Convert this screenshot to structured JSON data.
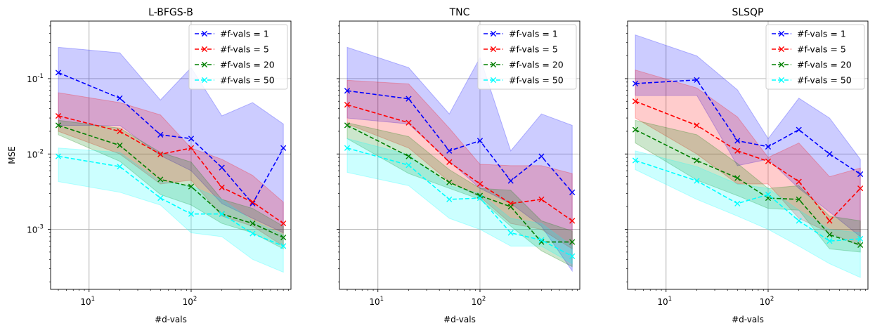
{
  "chart_data": [
    {
      "type": "line",
      "title": "L-BFGS-B",
      "xlabel": "#d-vals",
      "ylabel": "MSE",
      "xscale": "log",
      "yscale": "log",
      "xlim": [
        4.2,
        950
      ],
      "ylim": [
        0.00016,
        0.58
      ],
      "grid": true,
      "legend_position": "top-right",
      "x": [
        5,
        20,
        50,
        100,
        200,
        400,
        800
      ],
      "series": [
        {
          "name": "#f-vals = 1",
          "color": "#0000ff",
          "values": [
            0.12,
            0.055,
            0.018,
            0.016,
            0.0066,
            0.0022,
            0.012
          ],
          "lower": [
            0.024,
            0.024,
            0.0095,
            0.006,
            0.0022,
            0.0014,
            0.0009
          ],
          "upper": [
            0.26,
            0.22,
            0.052,
            0.14,
            0.032,
            0.048,
            0.025
          ]
        },
        {
          "name": "#f-vals = 5",
          "color": "#ff0000",
          "values": [
            0.032,
            0.02,
            0.0099,
            0.012,
            0.0036,
            0.0023,
            0.0012
          ],
          "lower": [
            0.02,
            0.01,
            0.004,
            0.0045,
            0.0015,
            0.0011,
            0.0006
          ],
          "upper": [
            0.065,
            0.048,
            0.033,
            0.012,
            0.0085,
            0.0052,
            0.0023
          ]
        },
        {
          "name": "#f-vals = 20",
          "color": "#008000",
          "values": [
            0.024,
            0.013,
            0.0046,
            0.0037,
            0.0016,
            0.0012,
            0.00078
          ],
          "lower": [
            0.018,
            0.008,
            0.0029,
            0.0021,
            0.0012,
            0.0009,
            0.00055
          ],
          "upper": [
            0.028,
            0.022,
            0.0105,
            0.0078,
            0.0025,
            0.0019,
            0.0011
          ]
        },
        {
          "name": "#f-vals = 50",
          "color": "#00ffff",
          "values": [
            0.0093,
            0.0068,
            0.0026,
            0.0016,
            0.0016,
            0.00088,
            0.0006
          ],
          "lower": [
            0.0043,
            0.0031,
            0.0021,
            0.0009,
            0.0008,
            0.0004,
            0.00027
          ],
          "upper": [
            0.012,
            0.0105,
            0.0043,
            0.0038,
            0.0025,
            0.0013,
            0.00085
          ]
        }
      ]
    },
    {
      "type": "line",
      "title": "TNC",
      "xlabel": "#d-vals",
      "ylabel": "",
      "xscale": "log",
      "yscale": "log",
      "xlim": [
        4.2,
        950
      ],
      "ylim": [
        0.00016,
        0.58
      ],
      "grid": true,
      "legend_position": "top-right",
      "x": [
        5,
        20,
        50,
        100,
        200,
        400,
        800
      ],
      "series": [
        {
          "name": "#f-vals = 1",
          "color": "#0000ff",
          "values": [
            0.069,
            0.054,
            0.011,
            0.015,
            0.0044,
            0.0093,
            0.0031
          ],
          "lower": [
            0.03,
            0.025,
            0.008,
            0.0035,
            0.0022,
            0.0011,
            0.00028
          ],
          "upper": [
            0.26,
            0.14,
            0.034,
            0.19,
            0.011,
            0.034,
            0.024
          ]
        },
        {
          "name": "#f-vals = 5",
          "color": "#ff0000",
          "values": [
            0.045,
            0.026,
            0.0078,
            0.004,
            0.0022,
            0.0025,
            0.0013
          ],
          "lower": [
            0.025,
            0.012,
            0.0043,
            0.0027,
            0.0012,
            0.001,
            0.00055
          ],
          "upper": [
            0.095,
            0.085,
            0.022,
            0.0073,
            0.007,
            0.007,
            0.0055
          ]
        },
        {
          "name": "#f-vals = 20",
          "color": "#008000",
          "values": [
            0.024,
            0.0093,
            0.0042,
            0.0028,
            0.002,
            0.00068,
            0.00068
          ],
          "lower": [
            0.016,
            0.0055,
            0.0035,
            0.0025,
            0.0011,
            0.00052,
            0.00032
          ],
          "upper": [
            0.026,
            0.017,
            0.0062,
            0.0035,
            0.0033,
            0.0013,
            0.00095
          ]
        },
        {
          "name": "#f-vals = 50",
          "color": "#00ffff",
          "values": [
            0.012,
            0.0071,
            0.0025,
            0.0026,
            0.0009,
            0.00072,
            0.00044
          ],
          "lower": [
            0.0057,
            0.0038,
            0.0014,
            0.001,
            0.0006,
            0.0006,
            0.00035
          ],
          "upper": [
            0.016,
            0.0098,
            0.0038,
            0.003,
            0.0014,
            0.0012,
            0.0006
          ]
        }
      ]
    },
    {
      "type": "line",
      "title": "SLSQP",
      "xlabel": "#d-vals",
      "ylabel": "",
      "xscale": "log",
      "yscale": "log",
      "xlim": [
        4.2,
        950
      ],
      "ylim": [
        0.00016,
        0.58
      ],
      "grid": true,
      "legend_position": "top-right",
      "x": [
        5,
        20,
        50,
        100,
        200,
        400,
        800
      ],
      "series": [
        {
          "name": "#f-vals = 1",
          "color": "#0000ff",
          "values": [
            0.086,
            0.096,
            0.015,
            0.0125,
            0.021,
            0.01,
            0.0054
          ],
          "lower": [
            0.06,
            0.06,
            0.007,
            0.0085,
            0.0035,
            0.0017,
            0.0008
          ],
          "upper": [
            0.38,
            0.2,
            0.071,
            0.016,
            0.055,
            0.03,
            0.0085
          ]
        },
        {
          "name": "#f-vals = 5",
          "color": "#ff0000",
          "values": [
            0.05,
            0.024,
            0.011,
            0.008,
            0.0043,
            0.0013,
            0.0035
          ],
          "lower": [
            0.03,
            0.01,
            0.004,
            0.004,
            0.0014,
            0.0009,
            0.0006
          ],
          "upper": [
            0.13,
            0.075,
            0.031,
            0.009,
            0.014,
            0.005,
            0.0065
          ]
        },
        {
          "name": "#f-vals = 20",
          "color": "#008000",
          "values": [
            0.021,
            0.0082,
            0.0048,
            0.0026,
            0.0025,
            0.00085,
            0.00062
          ],
          "lower": [
            0.014,
            0.0045,
            0.0028,
            0.0019,
            0.0018,
            0.00055,
            0.0005
          ],
          "upper": [
            0.028,
            0.018,
            0.0075,
            0.0035,
            0.0038,
            0.0015,
            0.0013
          ]
        },
        {
          "name": "#f-vals = 50",
          "color": "#00ffff",
          "values": [
            0.0082,
            0.0044,
            0.0022,
            0.0029,
            0.0013,
            0.0007,
            0.00075
          ],
          "lower": [
            0.0062,
            0.0025,
            0.0015,
            0.001,
            0.0006,
            0.00035,
            0.00023
          ],
          "upper": [
            0.011,
            0.0068,
            0.004,
            0.0035,
            0.0018,
            0.001,
            0.0009
          ]
        }
      ]
    }
  ]
}
